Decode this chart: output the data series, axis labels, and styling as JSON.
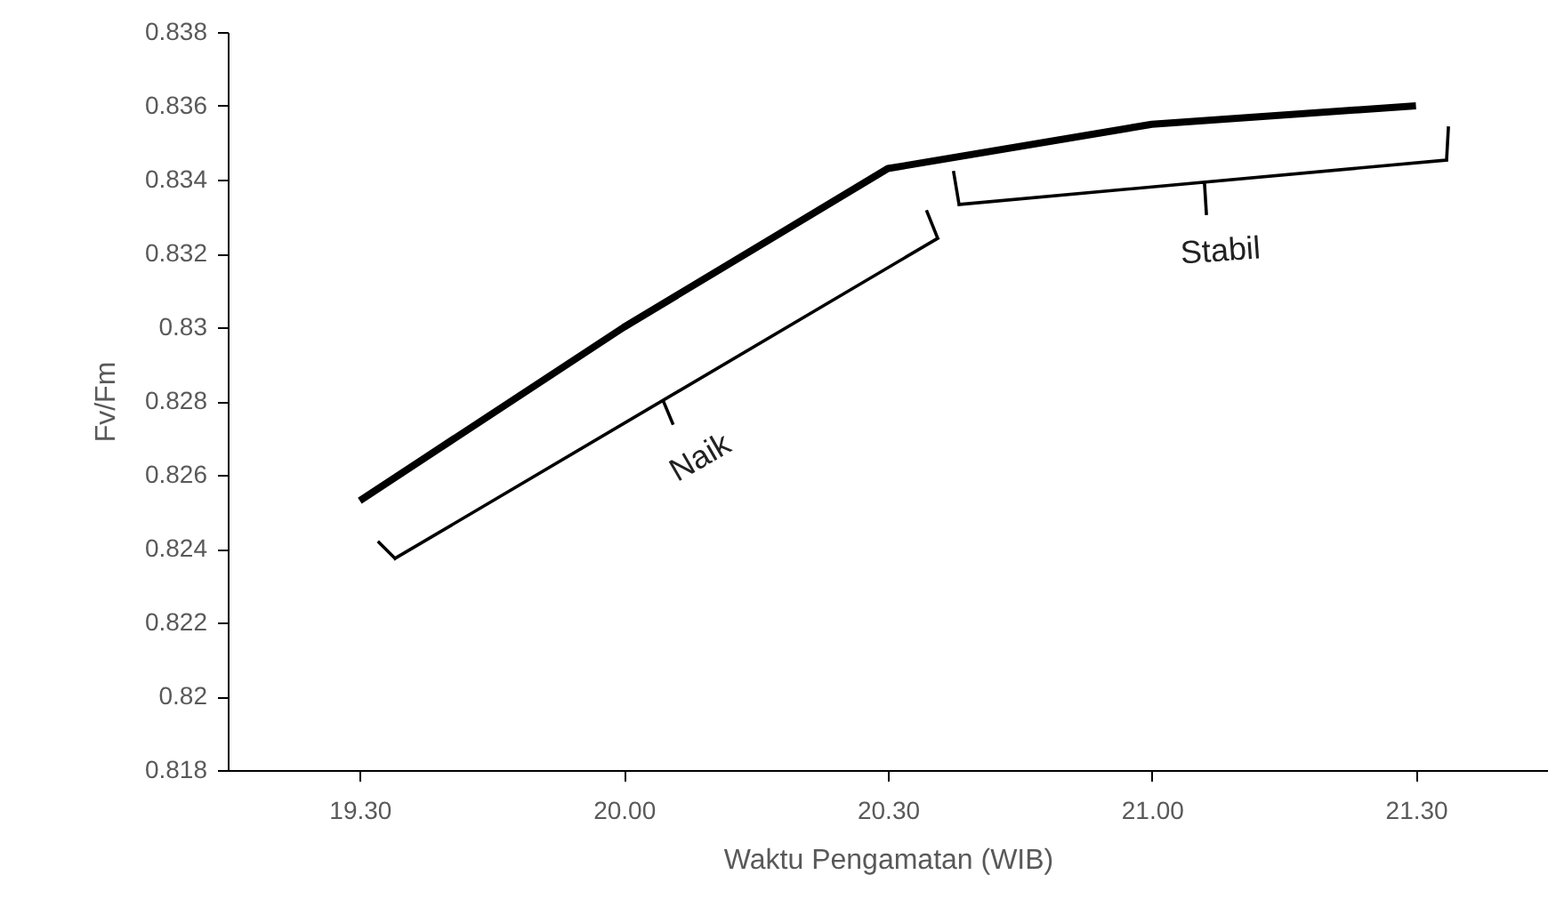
{
  "chart_data": {
    "type": "line",
    "xlabel": "Waktu Pengamatan (WIB)",
    "ylabel": "Fv/Fm",
    "categories": [
      "19.30",
      "20.00",
      "20.30",
      "21.00",
      "21.30"
    ],
    "series": [
      {
        "color": "#000000",
        "values": [
          0.8253,
          0.83,
          0.8343,
          0.8355,
          0.836
        ]
      }
    ],
    "ylim": [
      0.818,
      0.838
    ],
    "yticks": [
      0.818,
      0.82,
      0.822,
      0.824,
      0.826,
      0.828,
      0.83,
      0.832,
      0.834,
      0.836,
      0.838
    ],
    "annotations": [
      "Naik",
      "Stabil"
    ],
    "grid": false,
    "marker": "none",
    "line_style": "solid"
  }
}
